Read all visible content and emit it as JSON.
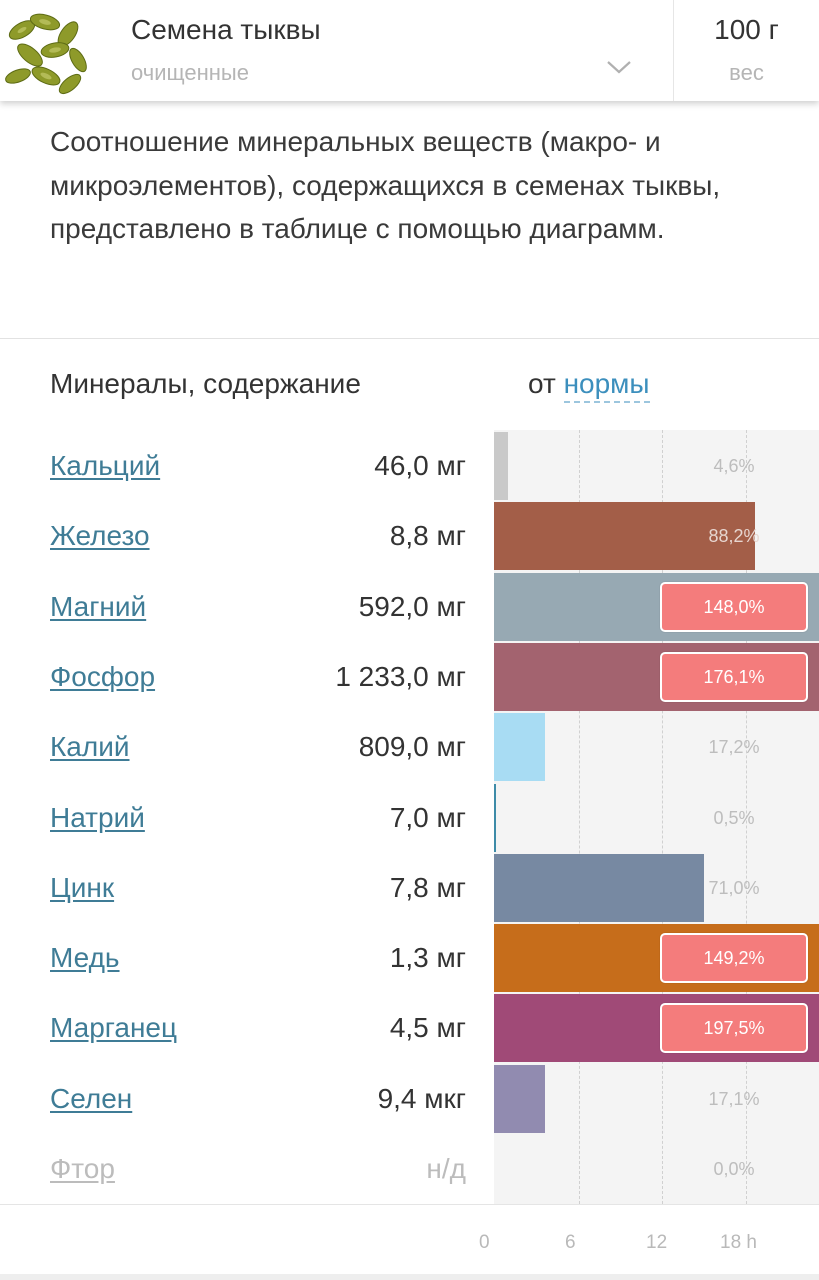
{
  "header": {
    "product_name": "Семена тыквы",
    "product_variant": "очищенные",
    "weight_value": "100 г",
    "weight_label": "вес",
    "chevron_icon": "chevron-down-icon",
    "thumbnail_icon": "pumpkin-seeds-photo"
  },
  "description": "Соотношение минеральных веществ (макро- и микроэлементов), содержащихся в семенах тыквы, представлено в таблице с помощью диаграмм.",
  "table": {
    "column_title": "Минералы, содержание",
    "norm_prefix": "от",
    "norm_link": "нормы"
  },
  "minerals": [
    {
      "name": "Кальций",
      "amount": "46,0 мг",
      "percent": 4.6,
      "percent_label": "4,6%",
      "color": "#c9c9c9"
    },
    {
      "name": "Железо",
      "amount": "8,8 мг",
      "percent": 88.2,
      "percent_label": "88,2%",
      "color": "#a35e48"
    },
    {
      "name": "Магний",
      "amount": "592,0 мг",
      "percent": 148.0,
      "percent_label": "148,0%",
      "color": "#97a9b3"
    },
    {
      "name": "Фосфор",
      "amount": "1 233,0 мг",
      "percent": 176.1,
      "percent_label": "176,1%",
      "color": "#a3636f"
    },
    {
      "name": "Калий",
      "amount": "809,0 мг",
      "percent": 17.2,
      "percent_label": "17,2%",
      "color": "#a8dcf3"
    },
    {
      "name": "Натрий",
      "amount": "7,0 мг",
      "percent": 0.5,
      "percent_label": "0,5%",
      "color": "#3e8ba8"
    },
    {
      "name": "Цинк",
      "amount": "7,8 мг",
      "percent": 71.0,
      "percent_label": "71,0%",
      "color": "#7789a2"
    },
    {
      "name": "Медь",
      "amount": "1,3 мг",
      "percent": 149.2,
      "percent_label": "149,2%",
      "color": "#c66d1b"
    },
    {
      "name": "Марганец",
      "amount": "4,5 мг",
      "percent": 197.5,
      "percent_label": "197,5%",
      "color": "#a04a77"
    },
    {
      "name": "Селен",
      "amount": "9,4 мкг",
      "percent": 17.1,
      "percent_label": "17,1%",
      "color": "#918bb0"
    },
    {
      "name": "Фтор",
      "amount": "н/д",
      "percent": 0.0,
      "percent_label": "0,0%",
      "color": "#cccccc",
      "unavailable": true
    }
  ],
  "axis_ticks": [
    "0",
    "6",
    "12",
    "18 h"
  ],
  "colors": {
    "link": "#3f7c96",
    "highlight_badge": "#f47c7c",
    "chart_background": "#f4f4f4"
  }
}
